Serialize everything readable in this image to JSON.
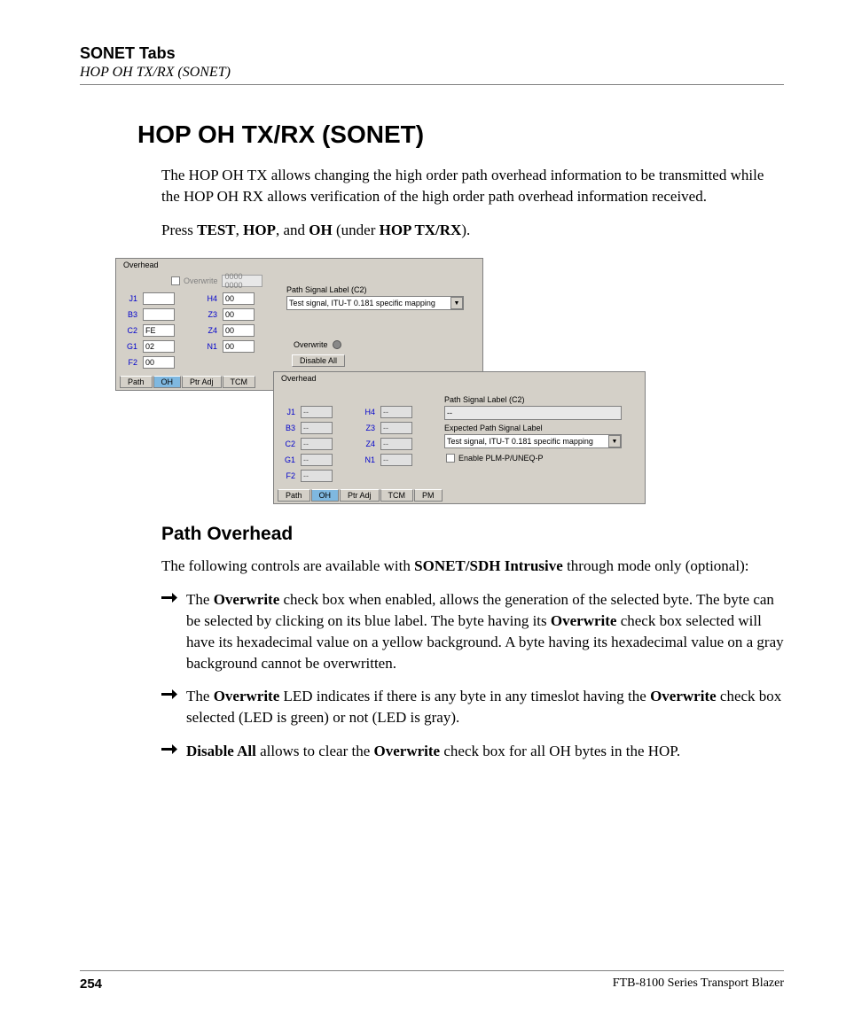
{
  "header": {
    "chapter": "SONET Tabs",
    "subtitle": "HOP OH TX/RX (SONET)"
  },
  "title": "HOP OH TX/RX (SONET)",
  "intro": "The HOP OH TX allows changing the high order path overhead information to be transmitted while the HOP OH RX allows verification of the high order path overhead information received.",
  "press": {
    "prefix": "Press ",
    "b1": "TEST",
    "s1": ", ",
    "b2": "HOP",
    "s2": ", and ",
    "b3": "OH",
    "s3": " (under ",
    "b4": "HOP TX/RX",
    "s4": ")."
  },
  "win1": {
    "group": "Overhead",
    "overwrite_cb": "Overwrite",
    "overwrite_val": "0000 0000",
    "col1": [
      {
        "l": "J1",
        "v": ""
      },
      {
        "l": "B3",
        "v": ""
      },
      {
        "l": "C2",
        "v": "FE"
      },
      {
        "l": "G1",
        "v": "02"
      },
      {
        "l": "F2",
        "v": "00"
      }
    ],
    "col2": [
      {
        "l": "H4",
        "v": "00"
      },
      {
        "l": "Z3",
        "v": "00"
      },
      {
        "l": "Z4",
        "v": "00"
      },
      {
        "l": "N1",
        "v": "00"
      }
    ],
    "psl_label": "Path Signal Label (C2)",
    "psl_value": "Test signal, ITU-T 0.181 specific mapping",
    "ov_led": "Overwrite",
    "disable": "Disable All",
    "tabs": [
      "Path",
      "OH",
      "Ptr Adj",
      "TCM"
    ],
    "active_tab": 1
  },
  "win2": {
    "group": "Overhead",
    "col1": [
      {
        "l": "J1",
        "v": "--"
      },
      {
        "l": "B3",
        "v": "--"
      },
      {
        "l": "C2",
        "v": "--"
      },
      {
        "l": "G1",
        "v": "--"
      },
      {
        "l": "F2",
        "v": "--"
      }
    ],
    "col2": [
      {
        "l": "H4",
        "v": "--"
      },
      {
        "l": "Z3",
        "v": "--"
      },
      {
        "l": "Z4",
        "v": "--"
      },
      {
        "l": "N1",
        "v": "--"
      }
    ],
    "psl_label": "Path Signal Label (C2)",
    "psl_value": "--",
    "exp_label": "Expected Path Signal Label",
    "exp_value": "Test signal, ITU-T 0.181 specific mapping",
    "enable_cb": "Enable PLM-P/UNEQ-P",
    "tabs": [
      "Path",
      "OH",
      "Ptr Adj",
      "TCM",
      "PM"
    ],
    "active_tab": 1
  },
  "section": {
    "title": "Path Overhead",
    "intro_pre": "The following controls are available with ",
    "intro_bold": "SONET/SDH Intrusive",
    "intro_post": " through mode only (optional):"
  },
  "bullets": [
    {
      "runs": [
        {
          "t": "The "
        },
        {
          "t": "Overwrite",
          "b": true
        },
        {
          "t": " check box when enabled, allows the generation of the selected byte. The byte can be selected by clicking on its blue label. The byte having its "
        },
        {
          "t": "Overwrite",
          "b": true
        },
        {
          "t": " check box selected will have its hexadecimal value on a yellow background. A byte having its hexadecimal value on a gray background cannot be overwritten."
        }
      ]
    },
    {
      "runs": [
        {
          "t": "The "
        },
        {
          "t": "Overwrite",
          "b": true
        },
        {
          "t": " LED indicates if there is any byte in any timeslot having the "
        },
        {
          "t": "Overwrite",
          "b": true
        },
        {
          "t": " check box selected (LED is green) or not (LED is gray)."
        }
      ]
    },
    {
      "runs": [
        {
          "t": "Disable All",
          "b": true
        },
        {
          "t": " allows to clear the "
        },
        {
          "t": "Overwrite",
          "b": true
        },
        {
          "t": " check box for all OH bytes in the HOP."
        }
      ]
    }
  ],
  "footer": {
    "page": "254",
    "product": "FTB-8100 Series Transport Blazer"
  }
}
